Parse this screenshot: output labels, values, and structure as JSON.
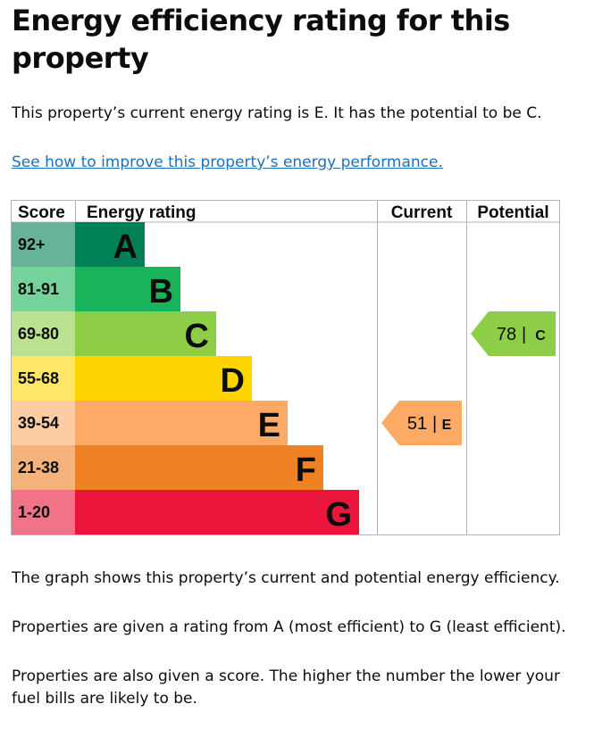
{
  "page": {
    "title": "Energy efficiency rating for this property",
    "intro": "This property’s current energy rating is E. It has the potential to be C.",
    "improve_link": "See how to improve this property’s energy performance.",
    "paragraphs": [
      "The graph shows this property’s current and potential energy efficiency.",
      "Properties are given a rating from A (most efficient) to G (least efficient).",
      "Properties are also given a score. The higher the number the lower your fuel bills are likely to be."
    ]
  },
  "chart_data": {
    "type": "table",
    "headers": {
      "score": "Score",
      "rating": "Energy rating",
      "current": "Current",
      "potential": "Potential"
    },
    "bands": [
      {
        "letter": "A",
        "range": "92+",
        "color": "#008054",
        "score_color": "#66b398"
      },
      {
        "letter": "B",
        "range": "81-91",
        "color": "#19b459",
        "score_color": "#75d29b"
      },
      {
        "letter": "C",
        "range": "69-80",
        "color": "#8dce46",
        "score_color": "#bbe290"
      },
      {
        "letter": "D",
        "range": "55-68",
        "color": "#ffd500",
        "score_color": "#ffe666"
      },
      {
        "letter": "E",
        "range": "39-54",
        "color": "#fcaa65",
        "score_color": "#fdcca3"
      },
      {
        "letter": "F",
        "range": "21-38",
        "color": "#ef8023",
        "score_color": "#f5b37b"
      },
      {
        "letter": "G",
        "range": "1-20",
        "color": "#e9153b",
        "score_color": "#f27388"
      }
    ],
    "current": {
      "score": 51,
      "letter": "E"
    },
    "potential": {
      "score": 78,
      "letter": "C"
    }
  }
}
